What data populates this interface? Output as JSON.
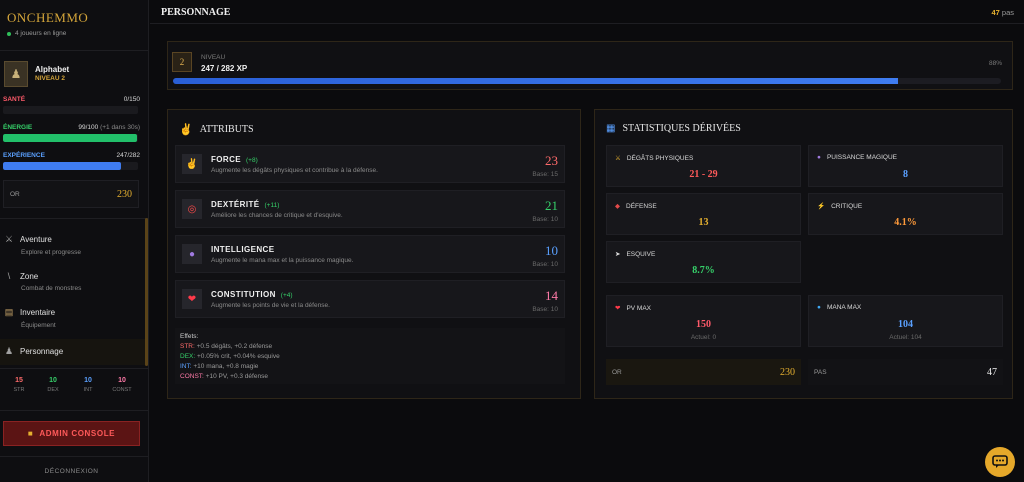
{
  "sidebar": {
    "brand": "ONCHEMMO",
    "online": "4 joueurs en ligne",
    "player": {
      "name": "Alphabet",
      "level": "NIVEAU 2"
    },
    "stats": {
      "health": {
        "label": "SANTÉ",
        "value": "0/150",
        "fraction": 0,
        "color": "#e24a4a"
      },
      "energy": {
        "label": "ÉNERGIE",
        "value": "99/100",
        "note": "(+1 dans 30s)",
        "fraction": 0.99,
        "color": "#22c06a"
      },
      "experience": {
        "label": "EXPÉRIENCE",
        "value": "247/282",
        "fraction": 0.876,
        "color": "#3f7cf0"
      }
    },
    "gold": {
      "label": "OR",
      "value": "230"
    },
    "nav": [
      {
        "label": "Aventure",
        "sub": "Explore et progresse",
        "icon": "crossed-swords-icon"
      },
      {
        "label": "Zone",
        "sub": "Combat de monstres",
        "icon": "sword-icon"
      },
      {
        "label": "Inventaire",
        "sub": "Équipement",
        "icon": "scroll-icon"
      },
      {
        "label": "Personnage",
        "sub": "",
        "icon": "user-icon"
      }
    ],
    "mini_stats": [
      {
        "value": "15",
        "key": "STR",
        "color": "#ff6b6b"
      },
      {
        "value": "10",
        "key": "DEX",
        "color": "#36d16a"
      },
      {
        "value": "10",
        "key": "INT",
        "color": "#5aa0ff"
      },
      {
        "value": "10",
        "key": "CONST",
        "color": "#ff7aa8"
      }
    ],
    "admin_label": "ADMIN CONSOLE",
    "logout_label": "DÉCONNEXION"
  },
  "header": {
    "title": "PERSONNAGE",
    "steps_value": "47",
    "steps_unit": "pas"
  },
  "level_panel": {
    "level": "2",
    "label": "NIVEAU",
    "xp": "247 / 282 XP",
    "percent_label": "88%",
    "fraction": 0.876
  },
  "attributes": {
    "title": "ATTRIBUTS",
    "items": [
      {
        "name": "FORCE",
        "bonus": "(+8)",
        "desc": "Augmente les dégâts physiques et contribue à la défense.",
        "value": "23",
        "base": "Base: 15",
        "color": "#ff6b6b",
        "icon": "flexed-arm-icon"
      },
      {
        "name": "DEXTÉRITÉ",
        "bonus": "(+11)",
        "desc": "Améliore les chances de critique et d'esquive.",
        "value": "21",
        "base": "Base: 10",
        "color": "#36d16a",
        "icon": "target-icon"
      },
      {
        "name": "INTELLIGENCE",
        "bonus": "",
        "desc": "Augmente le mana max et la puissance magique.",
        "value": "10",
        "base": "Base: 10",
        "color": "#5aa0ff",
        "icon": "crystal-ball-icon"
      },
      {
        "name": "CONSTITUTION",
        "bonus": "(+4)",
        "desc": "Augmente les points de vie et la défense.",
        "value": "14",
        "base": "Base: 10",
        "color": "#ff7aa8",
        "icon": "heart-icon"
      }
    ],
    "effects": {
      "heading": "Effets:",
      "lines": [
        {
          "key": "STR:",
          "text": "+0.5 dégâts, +0.2 défense",
          "color": "#ff6b6b"
        },
        {
          "key": "DEX:",
          "text": "+0.05% crit, +0.04% esquive",
          "color": "#36d16a"
        },
        {
          "key": "INT:",
          "text": "+10 mana, +0.8 magie",
          "color": "#5aa0ff"
        },
        {
          "key": "CONST:",
          "text": "+10 PV, +0.3 défense",
          "color": "#ff7aa8"
        }
      ]
    }
  },
  "derived": {
    "title": "STATISTIQUES DÉRIVÉES",
    "cards": [
      {
        "label": "DÉGÂTS PHYSIQUES",
        "value": "21 - 29",
        "color": "#ff5a5a",
        "icon": "crossed-swords-icon"
      },
      {
        "label": "PUISSANCE MAGIQUE",
        "value": "8",
        "color": "#5aa0ff",
        "icon": "crystal-ball-icon"
      },
      {
        "label": "DÉFENSE",
        "value": "13",
        "color": "#e5b030",
        "icon": "shield-icon"
      },
      {
        "label": "CRITIQUE",
        "value": "4.1%",
        "color": "#ff9a3a",
        "icon": "lightning-icon"
      },
      {
        "label": "ESQUIVE",
        "value": "8.7%",
        "color": "#36d16a",
        "icon": "dash-icon"
      }
    ],
    "pv": {
      "label": "PV MAX",
      "value": "150",
      "sub": "Actuel: 0",
      "color": "#ff5a6a"
    },
    "mana": {
      "label": "MANA MAX",
      "value": "104",
      "sub": "Actuel: 104",
      "color": "#5aa0ff"
    },
    "gold": {
      "label": "OR",
      "value": "230"
    },
    "steps": {
      "label": "PAS",
      "value": "47"
    }
  }
}
